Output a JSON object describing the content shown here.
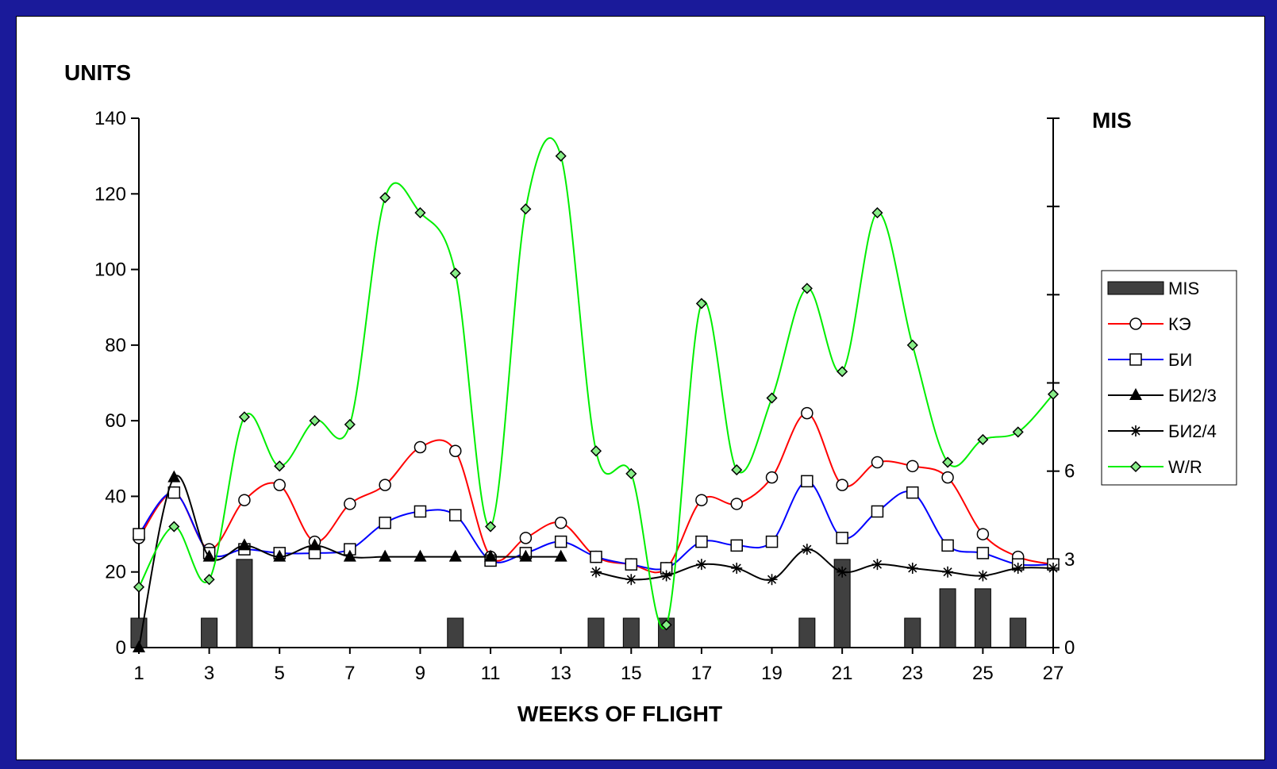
{
  "chart_data": {
    "type": "line",
    "xlabel": "WEEKS OF FLIGHT",
    "ylabel": "UNITS",
    "y2label": "MIS",
    "xlim": [
      1,
      27
    ],
    "ylim": [
      0,
      140
    ],
    "y2lim": [
      0,
      18
    ],
    "x_ticks": [
      1,
      3,
      5,
      7,
      9,
      11,
      13,
      15,
      17,
      19,
      21,
      23,
      25,
      27
    ],
    "y_ticks": [
      0,
      20,
      40,
      60,
      80,
      100,
      120,
      140
    ],
    "y2_ticks_labeled": [
      0,
      3,
      6
    ],
    "y2_ticks": [
      0,
      3,
      6,
      9,
      12,
      15,
      18
    ],
    "legend_position": "right",
    "series": [
      {
        "name": "MIS",
        "type": "bar",
        "axis": "right",
        "color": "#404040",
        "x": [
          1,
          3,
          4,
          10,
          14,
          15,
          16,
          20,
          21,
          23,
          24,
          25,
          26
        ],
        "values": [
          1,
          1,
          3,
          1,
          1,
          1,
          1,
          1,
          3,
          1,
          2,
          2,
          1
        ]
      },
      {
        "name": "КЭ",
        "type": "line",
        "marker": "circle",
        "color": "#ff0000",
        "x": [
          1,
          2,
          3,
          4,
          5,
          6,
          7,
          8,
          9,
          10,
          11,
          12,
          13,
          14,
          15,
          16,
          17,
          18,
          19,
          20,
          21,
          22,
          23,
          24,
          25,
          26,
          27
        ],
        "values": [
          29,
          41,
          26,
          39,
          43,
          28,
          38,
          43,
          53,
          52,
          24,
          29,
          33,
          24,
          22,
          21,
          39,
          38,
          45,
          62,
          43,
          49,
          48,
          45,
          30,
          24,
          22
        ]
      },
      {
        "name": "БИ",
        "type": "line",
        "marker": "square",
        "color": "#0000ff",
        "x": [
          1,
          2,
          3,
          4,
          5,
          6,
          7,
          8,
          9,
          10,
          11,
          12,
          13,
          14,
          15,
          16,
          17,
          18,
          19,
          20,
          21,
          22,
          23,
          24,
          25,
          26,
          27
        ],
        "values": [
          30,
          41,
          25,
          26,
          25,
          25,
          26,
          33,
          36,
          35,
          23,
          25,
          28,
          24,
          22,
          21,
          28,
          27,
          28,
          44,
          29,
          36,
          41,
          27,
          25,
          22,
          22
        ]
      },
      {
        "name": "БИ2/3",
        "type": "line",
        "marker": "triangle",
        "color": "#000000",
        "x": [
          1,
          2,
          3,
          4,
          5,
          6,
          7,
          8,
          9,
          10,
          11,
          12,
          13
        ],
        "values": [
          0,
          45,
          24,
          27,
          24,
          27,
          24,
          24,
          24,
          24,
          24,
          24,
          24
        ]
      },
      {
        "name": "БИ2/4",
        "type": "line",
        "marker": "star",
        "color": "#000000",
        "x": [
          14,
          15,
          16,
          17,
          18,
          19,
          20,
          21,
          22,
          23,
          24,
          25,
          26,
          27
        ],
        "values": [
          20,
          18,
          19,
          22,
          21,
          18,
          26,
          20,
          22,
          21,
          20,
          19,
          21,
          21
        ]
      },
      {
        "name": "W/R",
        "type": "line",
        "marker": "diamond",
        "color": "#00ee00",
        "x": [
          1,
          2,
          3,
          4,
          5,
          6,
          7,
          8,
          9,
          10,
          11,
          12,
          13,
          14,
          15,
          16,
          17,
          18,
          19,
          20,
          21,
          22,
          23,
          24,
          25,
          26,
          27
        ],
        "values": [
          16,
          32,
          18,
          61,
          48,
          60,
          59,
          119,
          115,
          99,
          32,
          116,
          130,
          52,
          46,
          6,
          91,
          47,
          66,
          95,
          73,
          115,
          80,
          49,
          55,
          57,
          67
        ]
      }
    ]
  }
}
